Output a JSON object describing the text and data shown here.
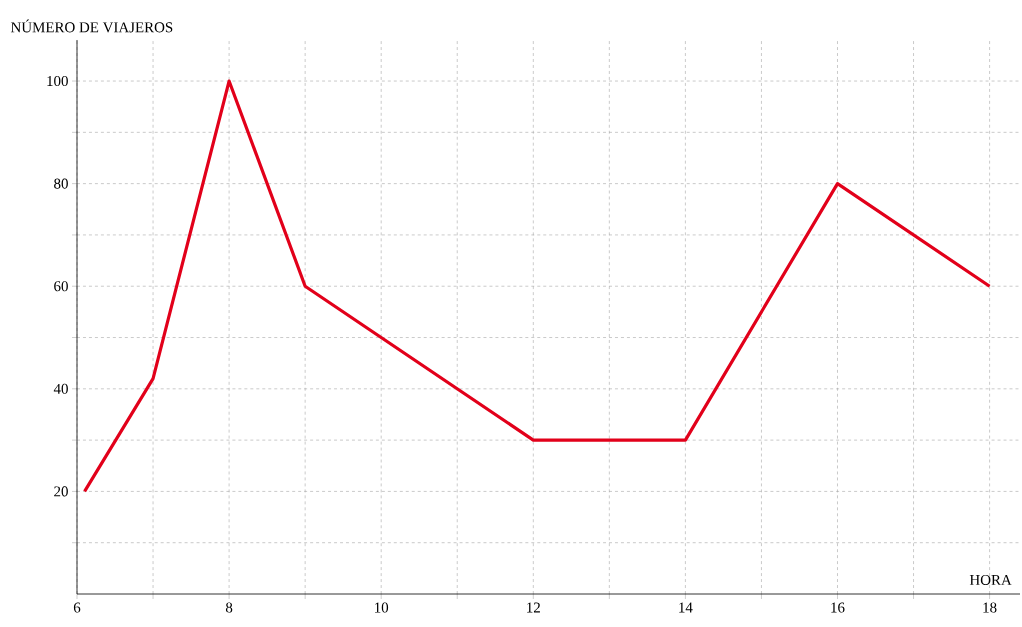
{
  "chart_data": {
    "type": "line",
    "xlabel": "HORA",
    "ylabel": "NÚMERO DE VIAJEROS",
    "x": [
      6.1,
      7,
      8,
      9,
      12,
      14,
      16,
      18
    ],
    "values": [
      20,
      42,
      100,
      60,
      30,
      30,
      80,
      60
    ],
    "color": "#e2001a",
    "xlim": [
      6,
      18.4
    ],
    "ylim": [
      0,
      108
    ],
    "xticks": [
      6,
      {
        "value": 7,
        "label": null
      },
      8,
      {
        "value": 9,
        "label": null
      },
      10,
      {
        "value": 11,
        "label": null
      },
      12,
      {
        "value": 13,
        "label": null
      },
      14,
      {
        "value": 15,
        "label": null
      },
      16,
      {
        "value": 17,
        "label": null
      },
      18
    ],
    "yticks": [
      {
        "value": 10,
        "label": null
      },
      20,
      {
        "value": 30,
        "label": null
      },
      40,
      {
        "value": 50,
        "label": null
      },
      60,
      {
        "value": 70,
        "label": null
      },
      80,
      {
        "value": 90,
        "label": null
      },
      100
    ],
    "grid": true
  }
}
